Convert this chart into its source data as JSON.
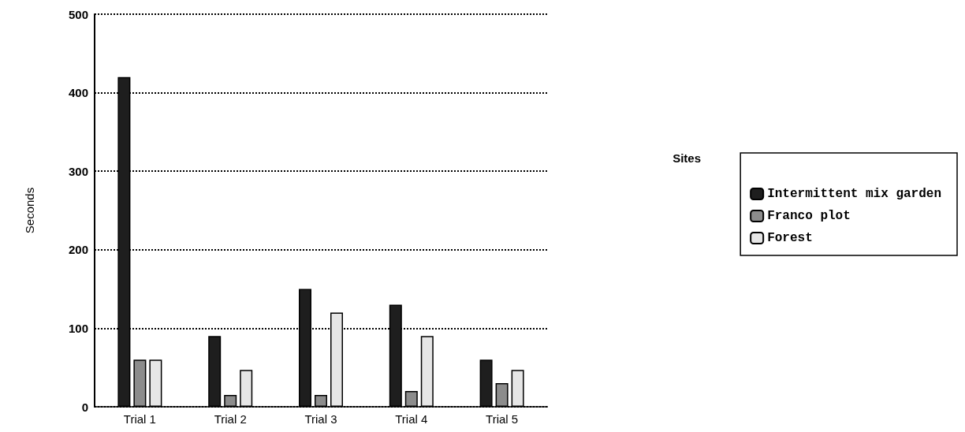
{
  "chart_data": {
    "type": "bar",
    "ylabel": "Seconds",
    "legend_title": "Sites",
    "categories": [
      "Trial 1",
      "Trial 2",
      "Trial 3",
      "Trial 4",
      "Trial 5"
    ],
    "series": [
      {
        "name": "Intermittent mix garden",
        "color": "#1e1e1e",
        "values": [
          420,
          90,
          150,
          130,
          60
        ]
      },
      {
        "name": "Franco plot",
        "color": "#8c8c8c",
        "values": [
          60,
          15,
          15,
          20,
          30
        ]
      },
      {
        "name": "Forest",
        "color": "#e6e6e6",
        "values": [
          60,
          47,
          120,
          90,
          47
        ]
      }
    ],
    "ylim": [
      0,
      500
    ],
    "yticks": [
      0,
      100,
      200,
      300,
      400,
      500
    ],
    "grid": "y",
    "legend": "right"
  }
}
